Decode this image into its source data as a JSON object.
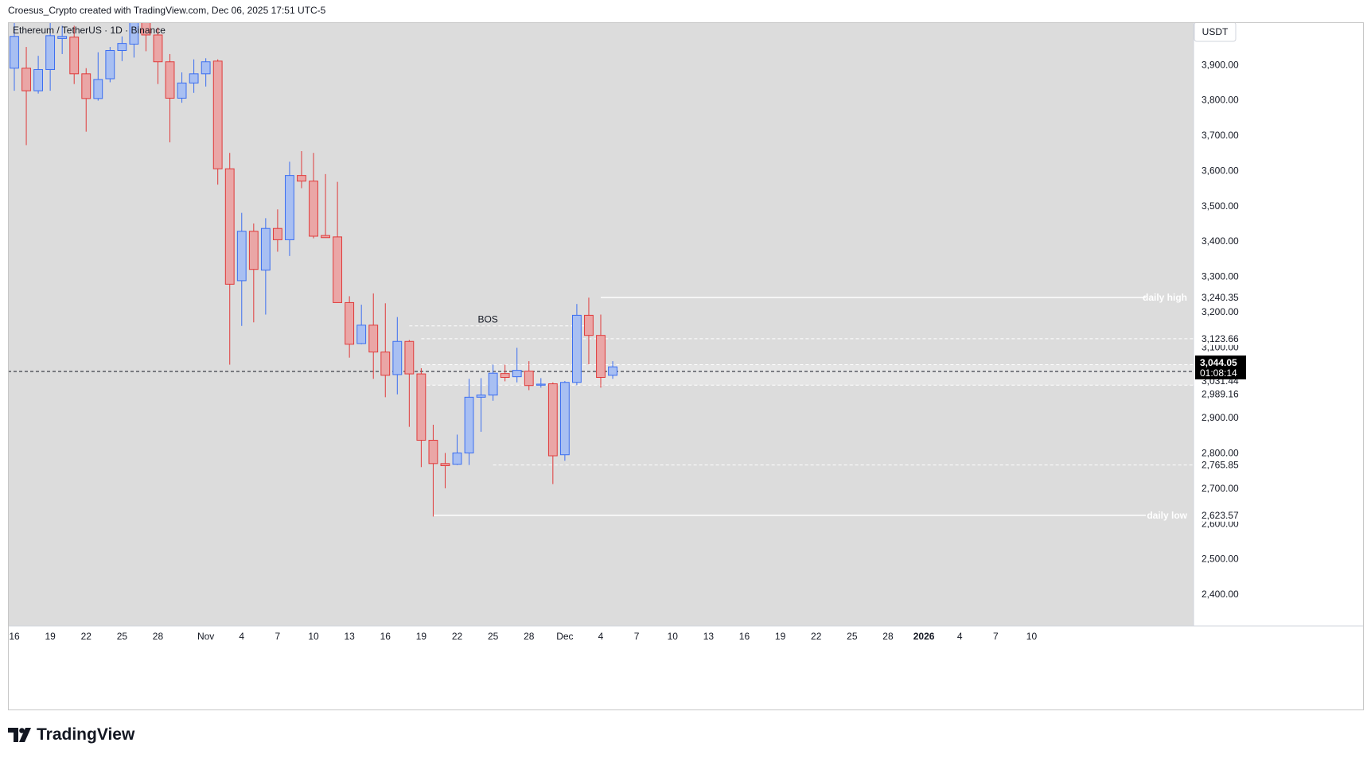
{
  "header": {
    "caption": "Croesus_Crypto created with TradingView.com, Dec 06, 2025 17:51 UTC-5"
  },
  "footer": {
    "brand": "TradingView"
  },
  "colors": {
    "background": "#dcdcdc",
    "bull_body": "#a8bff2",
    "bull_line": "#3b6ef0",
    "bear_body": "#eaa6a6",
    "bear_line": "#e03a3a",
    "annotation": "#ffffff",
    "text": "#131722"
  },
  "chart_data": {
    "type": "candlestick",
    "symbol": "Ethereum / TetherUS · 1D · Binance",
    "currency_button": "USDT",
    "ylim": [
      2310,
      4020
    ],
    "x_range": [
      0,
      98
    ],
    "y_ticks": [
      {
        "value": 3900,
        "label": "3,900.00"
      },
      {
        "value": 3800,
        "label": "3,800.00"
      },
      {
        "value": 3700,
        "label": "3,700.00"
      },
      {
        "value": 3600,
        "label": "3,600.00"
      },
      {
        "value": 3500,
        "label": "3,500.00"
      },
      {
        "value": 3400,
        "label": "3,400.00"
      },
      {
        "value": 3300,
        "label": "3,300.00"
      },
      {
        "value": 3200,
        "label": "3,200.00"
      },
      {
        "value": 3100,
        "label": "3,100.00"
      },
      {
        "value": 2900,
        "label": "2,900.00"
      },
      {
        "value": 2800,
        "label": "2,800.00"
      },
      {
        "value": 2700,
        "label": "2,700.00"
      },
      {
        "value": 2600,
        "label": "2,600.00"
      },
      {
        "value": 2500,
        "label": "2,500.00"
      },
      {
        "value": 2400,
        "label": "2,400.00"
      }
    ],
    "x_ticks": [
      {
        "index": 0,
        "label": "16"
      },
      {
        "index": 3,
        "label": "19"
      },
      {
        "index": 6,
        "label": "22"
      },
      {
        "index": 9,
        "label": "25"
      },
      {
        "index": 12,
        "label": "28"
      },
      {
        "index": 16,
        "label": "Nov"
      },
      {
        "index": 19,
        "label": "4"
      },
      {
        "index": 22,
        "label": "7"
      },
      {
        "index": 25,
        "label": "10"
      },
      {
        "index": 28,
        "label": "13"
      },
      {
        "index": 31,
        "label": "16"
      },
      {
        "index": 34,
        "label": "19"
      },
      {
        "index": 37,
        "label": "22"
      },
      {
        "index": 40,
        "label": "25"
      },
      {
        "index": 43,
        "label": "28"
      },
      {
        "index": 46,
        "label": "Dec"
      },
      {
        "index": 49,
        "label": "4"
      },
      {
        "index": 52,
        "label": "7"
      },
      {
        "index": 55,
        "label": "10"
      },
      {
        "index": 58,
        "label": "13"
      },
      {
        "index": 61,
        "label": "16"
      },
      {
        "index": 64,
        "label": "19"
      },
      {
        "index": 67,
        "label": "22"
      },
      {
        "index": 70,
        "label": "25"
      },
      {
        "index": 73,
        "label": "28"
      },
      {
        "index": 76,
        "label": "2026"
      },
      {
        "index": 79,
        "label": "4"
      },
      {
        "index": 82,
        "label": "7"
      },
      {
        "index": 85,
        "label": "10"
      }
    ],
    "candles": [
      {
        "o": 3890,
        "h": 4090,
        "l": 3826,
        "c": 3980
      },
      {
        "o": 3890,
        "h": 3950,
        "l": 3672,
        "c": 3826
      },
      {
        "o": 3826,
        "h": 3925,
        "l": 3818,
        "c": 3886
      },
      {
        "o": 3886,
        "h": 4040,
        "l": 3826,
        "c": 3982
      },
      {
        "o": 3974,
        "h": 4010,
        "l": 3930,
        "c": 3980
      },
      {
        "o": 3978,
        "h": 4010,
        "l": 3845,
        "c": 3874
      },
      {
        "o": 3874,
        "h": 3890,
        "l": 3710,
        "c": 3804
      },
      {
        "o": 3804,
        "h": 3935,
        "l": 3798,
        "c": 3858
      },
      {
        "o": 3860,
        "h": 3950,
        "l": 3850,
        "c": 3940
      },
      {
        "o": 3940,
        "h": 3980,
        "l": 3910,
        "c": 3960
      },
      {
        "o": 3958,
        "h": 4090,
        "l": 3920,
        "c": 4060
      },
      {
        "o": 4110,
        "h": 4190,
        "l": 3938,
        "c": 3984
      },
      {
        "o": 3984,
        "h": 4005,
        "l": 3845,
        "c": 3908
      },
      {
        "o": 3908,
        "h": 3930,
        "l": 3680,
        "c": 3805
      },
      {
        "o": 3805,
        "h": 3878,
        "l": 3792,
        "c": 3848
      },
      {
        "o": 3848,
        "h": 3915,
        "l": 3820,
        "c": 3874
      },
      {
        "o": 3874,
        "h": 3918,
        "l": 3838,
        "c": 3908
      },
      {
        "o": 3910,
        "h": 3915,
        "l": 3560,
        "c": 3605
      },
      {
        "o": 3605,
        "h": 3650,
        "l": 3050,
        "c": 3278
      },
      {
        "o": 3288,
        "h": 3480,
        "l": 3160,
        "c": 3428
      },
      {
        "o": 3428,
        "h": 3450,
        "l": 3170,
        "c": 3320
      },
      {
        "o": 3318,
        "h": 3465,
        "l": 3192,
        "c": 3436
      },
      {
        "o": 3436,
        "h": 3490,
        "l": 3370,
        "c": 3404
      },
      {
        "o": 3404,
        "h": 3625,
        "l": 3358,
        "c": 3586
      },
      {
        "o": 3586,
        "h": 3655,
        "l": 3550,
        "c": 3570
      },
      {
        "o": 3570,
        "h": 3650,
        "l": 3408,
        "c": 3414
      },
      {
        "o": 3416,
        "h": 3590,
        "l": 3410,
        "c": 3410
      },
      {
        "o": 3412,
        "h": 3568,
        "l": 3238,
        "c": 3226
      },
      {
        "o": 3226,
        "h": 3244,
        "l": 3070,
        "c": 3108
      },
      {
        "o": 3110,
        "h": 3220,
        "l": 3108,
        "c": 3162
      },
      {
        "o": 3162,
        "h": 3252,
        "l": 3010,
        "c": 3086
      },
      {
        "o": 3086,
        "h": 3224,
        "l": 2958,
        "c": 3020
      },
      {
        "o": 3022,
        "h": 3185,
        "l": 2966,
        "c": 3116
      },
      {
        "o": 3116,
        "h": 3120,
        "l": 2874,
        "c": 3024
      },
      {
        "o": 3024,
        "h": 3040,
        "l": 2760,
        "c": 2836
      },
      {
        "o": 2836,
        "h": 2880,
        "l": 2620,
        "c": 2770
      },
      {
        "o": 2770,
        "h": 2800,
        "l": 2700,
        "c": 2764
      },
      {
        "o": 2768,
        "h": 2852,
        "l": 2766,
        "c": 2800
      },
      {
        "o": 2800,
        "h": 3010,
        "l": 2766,
        "c": 2958
      },
      {
        "o": 2958,
        "h": 3012,
        "l": 2860,
        "c": 2964
      },
      {
        "o": 2964,
        "h": 3050,
        "l": 2948,
        "c": 3026
      },
      {
        "o": 3025,
        "h": 3050,
        "l": 3003,
        "c": 3014
      },
      {
        "o": 3016,
        "h": 3098,
        "l": 3000,
        "c": 3034
      },
      {
        "o": 3032,
        "h": 3060,
        "l": 2978,
        "c": 2991
      },
      {
        "o": 2992,
        "h": 3012,
        "l": 2985,
        "c": 2995
      },
      {
        "o": 2996,
        "h": 3000,
        "l": 2712,
        "c": 2792
      },
      {
        "o": 2795,
        "h": 3004,
        "l": 2778,
        "c": 3000
      },
      {
        "o": 3000,
        "h": 3222,
        "l": 2992,
        "c": 3190
      },
      {
        "o": 3190,
        "h": 3240,
        "l": 3051,
        "c": 3133
      },
      {
        "o": 3133,
        "h": 3192,
        "l": 2985,
        "c": 3014
      },
      {
        "o": 3020,
        "h": 3060,
        "l": 3010,
        "c": 3044
      }
    ],
    "annotations": {
      "daily_high": {
        "label": "daily high",
        "value": 3240.35,
        "price_label": "3,240.35",
        "from": 49
      },
      "daily_low": {
        "label": "daily low",
        "value": 2623.57,
        "price_label": "2,623.57",
        "from": 35
      },
      "bos": {
        "label": "BOS",
        "value": 3160,
        "from": 33,
        "to": 48
      },
      "level_3123": {
        "value": 3123.66,
        "price_label": "3,123.66",
        "from": 34
      },
      "level_2765": {
        "value": 2765.85,
        "price_label": "2,765.85",
        "from": 40
      },
      "zone_top": {
        "value": 3044.05
      },
      "zone_bottom": {
        "value": 3031.44,
        "price_label": "3,031.44"
      },
      "level_2989": {
        "value": 2989.16,
        "price_label": "2,989.16"
      },
      "current_price": {
        "value": 3044.05,
        "price_label": "3,044.05",
        "countdown": "01:08:14"
      }
    }
  }
}
